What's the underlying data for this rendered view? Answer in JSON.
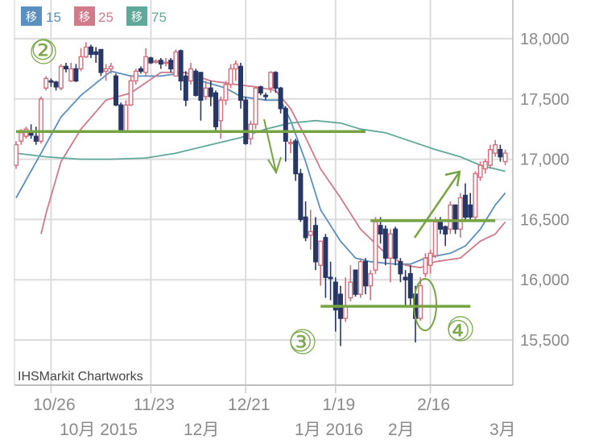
{
  "chart_data": {
    "type": "candlestick",
    "credit": "IHSMarkit Chartworks",
    "ylim": [
      15150,
      18200
    ],
    "y_ticks": [
      "18,000",
      "17,500",
      "17,000",
      "16,500",
      "16,000",
      "15,500"
    ],
    "y_tick_values": [
      18000,
      17500,
      17000,
      16500,
      16000,
      15500
    ],
    "x_ticks": [
      {
        "label": "10/26",
        "date": "10/26"
      },
      {
        "label": "11/23",
        "date": "11/23"
      },
      {
        "label": "12/21",
        "date": "12/21"
      },
      {
        "label": "1/19",
        "date": "1/19"
      },
      {
        "label": "2/16",
        "date": "2/16"
      }
    ],
    "month_labels": [
      "10月 2015",
      "12月",
      "1月 2016",
      "2月",
      "3月"
    ],
    "grid": true,
    "colors": {
      "up": "#d2707e",
      "down": "#273766",
      "ma15": "#5b8fc0",
      "ma25": "#d07a8a",
      "ma75": "#5fa89a",
      "annotation": "#76a443",
      "grid": "#dcdcdc"
    },
    "legend": [
      {
        "box": "移",
        "label": "15",
        "color": "#5b8fc0"
      },
      {
        "box": "移",
        "label": "25",
        "color": "#d07a8a"
      },
      {
        "box": "移",
        "label": "75",
        "color": "#5fa89a"
      }
    ],
    "candles_format": [
      "date",
      "open",
      "high",
      "low",
      "close"
    ],
    "candles": [
      [
        "10/15",
        16950,
        17150,
        16920,
        17120
      ],
      [
        "10/16",
        17150,
        17250,
        17120,
        17220
      ],
      [
        "10/19",
        17190,
        17270,
        17170,
        17250
      ],
      [
        "10/20",
        17220,
        17290,
        17170,
        17200
      ],
      [
        "10/21",
        17190,
        17270,
        17120,
        17150
      ],
      [
        "10/22",
        17150,
        17520,
        17130,
        17500
      ],
      [
        "10/23",
        17590,
        17690,
        17570,
        17670
      ],
      [
        "10/26",
        17650,
        17670,
        17600,
        17640
      ],
      [
        "10/27",
        17640,
        17650,
        17570,
        17600
      ],
      [
        "10/28",
        17590,
        17790,
        17570,
        17770
      ],
      [
        "10/29",
        17770,
        17800,
        17720,
        17750
      ],
      [
        "10/30",
        17650,
        17800,
        17640,
        17750
      ],
      [
        "11/2",
        17750,
        17790,
        17640,
        17650
      ],
      [
        "11/3",
        17750,
        17920,
        17730,
        17850
      ],
      [
        "11/4",
        17850,
        17970,
        17840,
        17930
      ],
      [
        "11/5",
        17930,
        17950,
        17840,
        17870
      ],
      [
        "11/6",
        17890,
        17930,
        17800,
        17870
      ],
      [
        "11/9",
        17910,
        17910,
        17690,
        17720
      ],
      [
        "11/10",
        17730,
        17790,
        17650,
        17750
      ],
      [
        "11/11",
        17750,
        17800,
        17710,
        17770
      ],
      [
        "11/12",
        17690,
        17710,
        17440,
        17450
      ],
      [
        "11/13",
        17450,
        17470,
        17220,
        17230
      ],
      [
        "11/16",
        17230,
        17490,
        17220,
        17450
      ],
      [
        "11/17",
        17450,
        17690,
        17440,
        17650
      ],
      [
        "11/18",
        17650,
        17750,
        17620,
        17730
      ],
      [
        "11/19",
        17750,
        17770,
        17710,
        17730
      ],
      [
        "11/20",
        17720,
        17920,
        17690,
        17850
      ],
      [
        "11/23",
        17840,
        17850,
        17790,
        17800
      ],
      [
        "11/24",
        17810,
        17830,
        17790,
        17815
      ],
      [
        "11/25",
        17820,
        17840,
        17750,
        17790
      ],
      [
        "11/27",
        17800,
        17840,
        17770,
        17805
      ],
      [
        "11/30",
        17820,
        17840,
        17720,
        17750
      ],
      [
        "12/1",
        17690,
        17910,
        17690,
        17890
      ],
      [
        "12/2",
        17900,
        17910,
        17570,
        17650
      ],
      [
        "12/3",
        17690,
        17730,
        17440,
        17490
      ],
      [
        "12/4",
        17650,
        17800,
        17620,
        17750
      ],
      [
        "12/7",
        17730,
        17750,
        17520,
        17530
      ],
      [
        "12/8",
        17720,
        17720,
        17320,
        17490
      ],
      [
        "12/9",
        17520,
        17650,
        17490,
        17590
      ],
      [
        "12/10",
        17590,
        17650,
        17440,
        17520
      ],
      [
        "12/11",
        17550,
        17570,
        17240,
        17270
      ],
      [
        "12/14",
        17320,
        17520,
        17170,
        17490
      ],
      [
        "12/15",
        17490,
        17650,
        17450,
        17620
      ],
      [
        "12/16",
        17620,
        17790,
        17590,
        17750
      ],
      [
        "12/17",
        17750,
        17820,
        17650,
        17790
      ],
      [
        "12/18",
        17770,
        17800,
        17420,
        17490
      ],
      [
        "12/21",
        17490,
        17520,
        17120,
        17130
      ],
      [
        "12/22",
        17170,
        17320,
        17120,
        17290
      ],
      [
        "12/23",
        17290,
        17600,
        17250,
        17590
      ],
      [
        "12/24",
        17600,
        17610,
        17530,
        17550
      ],
      [
        "12/28",
        17530,
        17550,
        17490,
        17520
      ],
      [
        "12/29",
        17590,
        17730,
        17550,
        17720
      ],
      [
        "12/30",
        17720,
        17730,
        17550,
        17590
      ],
      [
        "12/31",
        17590,
        17600,
        17380,
        17420
      ],
      [
        "1/4",
        17420,
        17440,
        16980,
        17150
      ],
      [
        "1/5",
        17130,
        17170,
        17050,
        17140
      ],
      [
        "1/6",
        17150,
        17170,
        16820,
        16880
      ],
      [
        "1/7",
        16880,
        16920,
        16480,
        16500
      ],
      [
        "1/8",
        16520,
        16650,
        16320,
        16350
      ],
      [
        "1/11",
        16370,
        16580,
        16250,
        16400
      ],
      [
        "1/12",
        16450,
        16520,
        16080,
        16150
      ],
      [
        "1/13",
        16120,
        16320,
        15950,
        16320
      ],
      [
        "1/14",
        16350,
        16380,
        15850,
        16020
      ],
      [
        "1/15",
        16020,
        16150,
        15830,
        16010
      ],
      [
        "1/19",
        15980,
        16020,
        15570,
        15750
      ],
      [
        "1/20",
        15880,
        15950,
        15450,
        15680
      ],
      [
        "1/21",
        15680,
        16020,
        15650,
        15780
      ],
      [
        "1/22",
        15850,
        16120,
        15820,
        15980
      ],
      [
        "1/25",
        16080,
        16080,
        15860,
        15880
      ],
      [
        "1/26",
        15880,
        16180,
        15850,
        16150
      ],
      [
        "1/27",
        16150,
        16180,
        15880,
        15950
      ],
      [
        "1/28",
        15950,
        16080,
        15830,
        16050
      ],
      [
        "1/29",
        16080,
        16520,
        16050,
        16480
      ],
      [
        "2/1",
        16450,
        16520,
        16300,
        16380
      ],
      [
        "2/2",
        16420,
        16450,
        16120,
        16180
      ],
      [
        "2/3",
        16180,
        16420,
        15980,
        16380
      ],
      [
        "2/4",
        16420,
        16440,
        16120,
        16180
      ],
      [
        "2/5",
        16150,
        16180,
        15980,
        16050
      ],
      [
        "2/8",
        16020,
        16080,
        15790,
        16000
      ],
      [
        "2/9",
        16050,
        16120,
        15780,
        15850
      ],
      [
        "2/10",
        15880,
        15950,
        15480,
        15680
      ],
      [
        "2/11",
        15680,
        16020,
        15660,
        15950
      ],
      [
        "2/12",
        16050,
        16220,
        16020,
        16180
      ],
      [
        "2/16",
        16120,
        16250,
        16050,
        16220
      ],
      [
        "2/17",
        16200,
        16520,
        16180,
        16480
      ],
      [
        "2/18",
        16480,
        16520,
        16380,
        16420
      ],
      [
        "2/19",
        16440,
        16450,
        16280,
        16380
      ],
      [
        "2/22",
        16420,
        16650,
        16380,
        16620
      ],
      [
        "2/23",
        16620,
        16620,
        16380,
        16420
      ],
      [
        "2/24",
        16420,
        16720,
        16350,
        16680
      ],
      [
        "2/25",
        16700,
        16800,
        16480,
        16520
      ],
      [
        "2/26",
        16620,
        16720,
        16500,
        16520
      ],
      [
        "2/29",
        16520,
        16900,
        16480,
        16880
      ],
      [
        "3/1",
        16850,
        16980,
        16820,
        16950
      ],
      [
        "3/2",
        16920,
        17000,
        16880,
        16980
      ],
      [
        "3/3",
        16950,
        17120,
        16920,
        17080
      ],
      [
        "3/4",
        17050,
        17160,
        17020,
        17120
      ],
      [
        "3/7",
        17080,
        17120,
        16980,
        17020
      ],
      [
        "3/8",
        16980,
        17080,
        16950,
        17050
      ]
    ],
    "series": [
      {
        "name": "15",
        "type": "line",
        "points": [
          [
            "10/15",
            16680
          ],
          [
            "10/22",
            17050
          ],
          [
            "10/28",
            17350
          ],
          [
            "11/3",
            17530
          ],
          [
            "11/11",
            17730
          ],
          [
            "11/17",
            17690
          ],
          [
            "11/25",
            17690
          ],
          [
            "12/3",
            17720
          ],
          [
            "12/8",
            17650
          ],
          [
            "12/15",
            17590
          ],
          [
            "12/18",
            17520
          ],
          [
            "12/28",
            17490
          ],
          [
            "12/31",
            17490
          ],
          [
            "1/5",
            17320
          ],
          [
            "1/8",
            16980
          ],
          [
            "1/13",
            16580
          ],
          [
            "1/20",
            16320
          ],
          [
            "1/25",
            16180
          ],
          [
            "1/28",
            16150
          ],
          [
            "2/4",
            16130
          ],
          [
            "2/9",
            16130
          ],
          [
            "2/12",
            16180
          ],
          [
            "2/22",
            16220
          ],
          [
            "2/25",
            16280
          ],
          [
            "3/1",
            16420
          ],
          [
            "3/4",
            16620
          ],
          [
            "3/8",
            16720
          ]
        ]
      },
      {
        "name": "25",
        "type": "line",
        "points": [
          [
            "10/22",
            16380
          ],
          [
            "10/23",
            16550
          ],
          [
            "10/28",
            16980
          ],
          [
            "11/3",
            17250
          ],
          [
            "11/10",
            17490
          ],
          [
            "11/17",
            17550
          ],
          [
            "11/25",
            17720
          ],
          [
            "12/3",
            17720
          ],
          [
            "12/10",
            17650
          ],
          [
            "12/17",
            17620
          ],
          [
            "12/23",
            17600
          ],
          [
            "12/30",
            17570
          ],
          [
            "1/5",
            17420
          ],
          [
            "1/8",
            17180
          ],
          [
            "1/13",
            16920
          ],
          [
            "1/20",
            16680
          ],
          [
            "1/26",
            16420
          ],
          [
            "2/2",
            16220
          ],
          [
            "2/8",
            16120
          ],
          [
            "2/11",
            16100
          ],
          [
            "2/17",
            16150
          ],
          [
            "2/24",
            16180
          ],
          [
            "3/1",
            16320
          ],
          [
            "3/4",
            16380
          ],
          [
            "3/8",
            16480
          ]
        ]
      },
      {
        "name": "75",
        "type": "line",
        "points": [
          [
            "10/15",
            17050
          ],
          [
            "10/23",
            17020
          ],
          [
            "11/3",
            17000
          ],
          [
            "11/11",
            17000
          ],
          [
            "11/20",
            17010
          ],
          [
            "12/1",
            17050
          ],
          [
            "12/10",
            17120
          ],
          [
            "12/18",
            17180
          ],
          [
            "12/28",
            17250
          ],
          [
            "1/5",
            17300
          ],
          [
            "1/12",
            17320
          ],
          [
            "1/20",
            17300
          ],
          [
            "1/26",
            17250
          ],
          [
            "2/2",
            17220
          ],
          [
            "2/9",
            17150
          ],
          [
            "2/17",
            17080
          ],
          [
            "2/24",
            17020
          ],
          [
            "3/1",
            16950
          ],
          [
            "3/8",
            16900
          ]
        ]
      }
    ],
    "annotations": {
      "labels": [
        "②",
        "③",
        "④"
      ],
      "horizontal_lines": [
        {
          "value": 17230,
          "from": "10/18",
          "to": "1/27"
        },
        {
          "value": 16490,
          "from": "1/28",
          "to": "3/4"
        },
        {
          "value": 15780,
          "from": "1/13",
          "to": "2/26"
        }
      ]
    }
  }
}
